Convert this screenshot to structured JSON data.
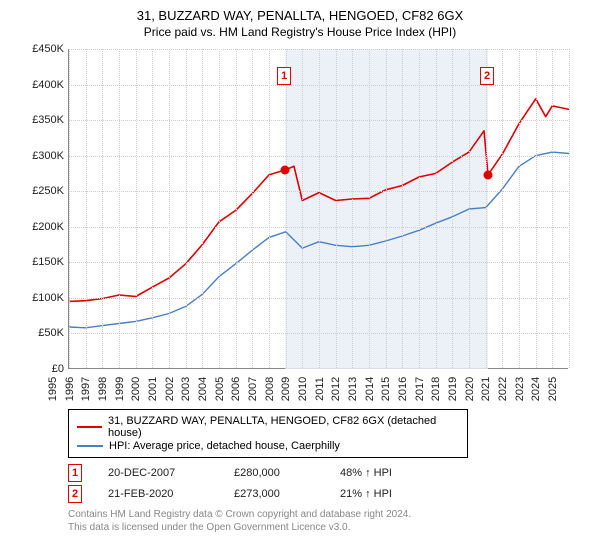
{
  "title_line1": "31, BUZZARD WAY, PENALLTA, HENGOED, CF82 6GX",
  "title_line2": "Price paid vs. HM Land Registry's House Price Index (HPI)",
  "chart": {
    "type": "line",
    "background_color": "#ffffff",
    "grid_color": "#cccccc",
    "axis_color": "#888888",
    "shaded_band_color": "#e8eef6",
    "shaded_band_x_start": 2007.97,
    "shaded_band_x_end": 2020.14,
    "xlim": [
      1995,
      2025
    ],
    "ylim": [
      0,
      450000
    ],
    "ytick_step": 50000,
    "yticks": [
      "£0",
      "£50K",
      "£100K",
      "£150K",
      "£200K",
      "£250K",
      "£300K",
      "£350K",
      "£400K",
      "£450K"
    ],
    "xticks": [
      1995,
      1996,
      1997,
      1998,
      1999,
      2000,
      2001,
      2002,
      2003,
      2004,
      2005,
      2006,
      2007,
      2008,
      2009,
      2010,
      2011,
      2012,
      2013,
      2014,
      2015,
      2016,
      2017,
      2018,
      2019,
      2020,
      2021,
      2022,
      2023,
      2024,
      2025
    ],
    "series": [
      {
        "name": "31, BUZZARD WAY, PENALLTA, HENGOED, CF82 6GX (detached house)",
        "color": "#e00000",
        "line_width": 1.6,
        "points": [
          [
            1995,
            95000
          ],
          [
            1996,
            96000
          ],
          [
            1997,
            99000
          ],
          [
            1998,
            104000
          ],
          [
            1999,
            102000
          ],
          [
            2000,
            115000
          ],
          [
            2001,
            128000
          ],
          [
            2002,
            148000
          ],
          [
            2003,
            175000
          ],
          [
            2004,
            207000
          ],
          [
            2005,
            223000
          ],
          [
            2006,
            247000
          ],
          [
            2007,
            273000
          ],
          [
            2007.97,
            280000
          ],
          [
            2008.5,
            285000
          ],
          [
            2009,
            237000
          ],
          [
            2010,
            248000
          ],
          [
            2011,
            237000
          ],
          [
            2012,
            239000
          ],
          [
            2013,
            240000
          ],
          [
            2014,
            252000
          ],
          [
            2015,
            258000
          ],
          [
            2016,
            270000
          ],
          [
            2017,
            275000
          ],
          [
            2018,
            291000
          ],
          [
            2019,
            305000
          ],
          [
            2019.9,
            335000
          ],
          [
            2020.14,
            273000
          ],
          [
            2020.7,
            292000
          ],
          [
            2021,
            302000
          ],
          [
            2022,
            345000
          ],
          [
            2023,
            380000
          ],
          [
            2023.6,
            355000
          ],
          [
            2024,
            370000
          ],
          [
            2025,
            365000
          ]
        ]
      },
      {
        "name": "HPI: Average price, detached house, Caerphilly",
        "color": "#4a7fc4",
        "line_width": 1.4,
        "points": [
          [
            1995,
            59000
          ],
          [
            1996,
            58000
          ],
          [
            1997,
            61000
          ],
          [
            1998,
            64000
          ],
          [
            1999,
            67000
          ],
          [
            2000,
            72000
          ],
          [
            2001,
            78000
          ],
          [
            2002,
            88000
          ],
          [
            2003,
            105000
          ],
          [
            2004,
            130000
          ],
          [
            2005,
            148000
          ],
          [
            2006,
            167000
          ],
          [
            2007,
            185000
          ],
          [
            2008,
            193000
          ],
          [
            2009,
            170000
          ],
          [
            2010,
            179000
          ],
          [
            2011,
            174000
          ],
          [
            2012,
            172000
          ],
          [
            2013,
            174000
          ],
          [
            2014,
            180000
          ],
          [
            2015,
            187000
          ],
          [
            2016,
            195000
          ],
          [
            2017,
            205000
          ],
          [
            2018,
            214000
          ],
          [
            2019,
            225000
          ],
          [
            2020,
            227000
          ],
          [
            2021,
            253000
          ],
          [
            2022,
            285000
          ],
          [
            2023,
            300000
          ],
          [
            2024,
            305000
          ],
          [
            2025,
            303000
          ]
        ]
      }
    ],
    "sale_markers": [
      {
        "label": "1",
        "x": 2007.97,
        "y": 280000,
        "box_y_offset": -200000
      },
      {
        "label": "2",
        "x": 2020.14,
        "y": 273000,
        "box_y_offset": -200000
      }
    ]
  },
  "legend": {
    "border_color": "#000000",
    "items": [
      {
        "color": "#e00000",
        "label": "31, BUZZARD WAY, PENALLTA, HENGOED, CF82 6GX (detached house)"
      },
      {
        "color": "#4a7fc4",
        "label": "HPI: Average price, detached house, Caerphilly"
      }
    ]
  },
  "sales": [
    {
      "marker": "1",
      "date": "20-DEC-2007",
      "price": "£280,000",
      "pct": "48% ↑ HPI"
    },
    {
      "marker": "2",
      "date": "21-FEB-2020",
      "price": "£273,000",
      "pct": "21% ↑ HPI"
    }
  ],
  "disclaimer_line1": "Contains HM Land Registry data © Crown copyright and database right 2024.",
  "disclaimer_line2": "This data is licensed under the Open Government Licence v3.0.",
  "fonts": {
    "title_size_pt": 13,
    "subtitle_size_pt": 12,
    "axis_size_pt": 11,
    "legend_size_pt": 11,
    "disclaimer_size_pt": 10
  }
}
